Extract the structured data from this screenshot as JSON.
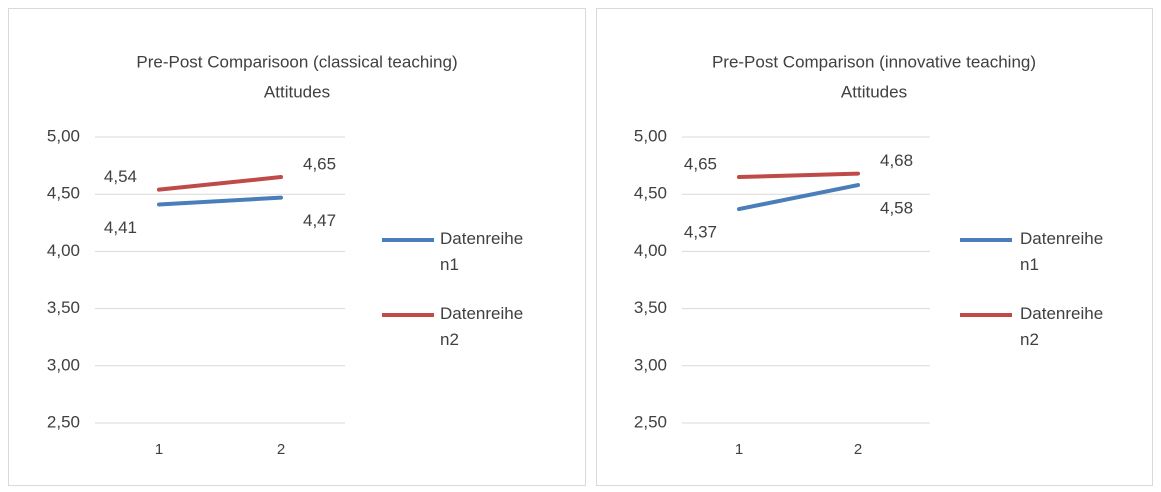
{
  "chart_data": [
    {
      "type": "line",
      "title": "Pre-Post Comparisoon (classical teaching)",
      "subtitle": "Attitudes",
      "categories": [
        "1",
        "2"
      ],
      "series": [
        {
          "name": "Datenreihen1",
          "color": "#4a7ebb",
          "values": [
            4.41,
            4.47
          ],
          "value_labels": [
            "4,41",
            "4,47"
          ]
        },
        {
          "name": "Datenreihen2",
          "color": "#be4b48",
          "values": [
            4.54,
            4.65
          ],
          "value_labels": [
            "4,54",
            "4,65"
          ]
        }
      ],
      "ylim": [
        2.5,
        5.0
      ],
      "yticks": [
        {
          "value": 2.5,
          "label": "2,50"
        },
        {
          "value": 3.0,
          "label": "3,00"
        },
        {
          "value": 3.5,
          "label": "3,50"
        },
        {
          "value": 4.0,
          "label": "4,00"
        },
        {
          "value": 4.5,
          "label": "4,50"
        },
        {
          "value": 5.0,
          "label": "5,00"
        }
      ],
      "grid": true,
      "legend": "right"
    },
    {
      "type": "line",
      "title": "Pre-Post Comparison (innovative teaching)",
      "subtitle": "Attitudes",
      "categories": [
        "1",
        "2"
      ],
      "series": [
        {
          "name": "Datenreihen1",
          "color": "#4a7ebb",
          "values": [
            4.37,
            4.58
          ],
          "value_labels": [
            "4,37",
            "4,58"
          ]
        },
        {
          "name": "Datenreihen2",
          "color": "#be4b48",
          "values": [
            4.65,
            4.68
          ],
          "value_labels": [
            "4,65",
            "4,68"
          ]
        }
      ],
      "ylim": [
        2.5,
        5.0
      ],
      "yticks": [
        {
          "value": 2.5,
          "label": "2,50"
        },
        {
          "value": 3.0,
          "label": "3,00"
        },
        {
          "value": 3.5,
          "label": "3,50"
        },
        {
          "value": 4.0,
          "label": "4,00"
        },
        {
          "value": 4.5,
          "label": "4,50"
        },
        {
          "value": 5.0,
          "label": "5,00"
        }
      ],
      "grid": true,
      "legend": "right"
    }
  ]
}
